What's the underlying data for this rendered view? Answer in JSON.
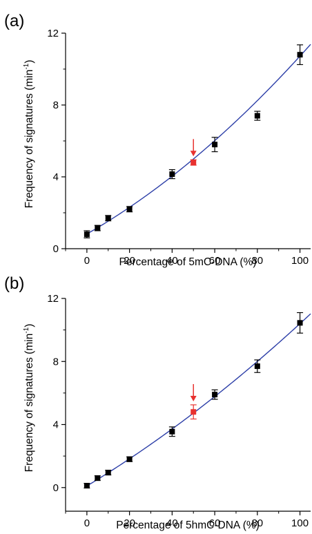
{
  "chart_data": [
    {
      "type": "scatter",
      "panel_label": "(a)",
      "xlabel": "Percentage of 5mC-DNA (%)",
      "ylabel_main": "Frequency of signatures (min",
      "ylabel_sup": "-1",
      "ylabel_end": ")",
      "xlim": [
        -10,
        105
      ],
      "ylim": [
        0,
        12
      ],
      "xticks": [
        "0",
        "20",
        "40",
        "60",
        "80",
        "100"
      ],
      "yticks": [
        "0",
        "4",
        "8",
        "12"
      ],
      "grid": false,
      "fit_line": true,
      "fit_color": "#2d3fa8",
      "highlight_color": "#e8312f",
      "point_color": "#000000",
      "points": [
        {
          "x": 0,
          "y": 0.8,
          "err": 0.2
        },
        {
          "x": 5,
          "y": 1.15,
          "err": 0.15
        },
        {
          "x": 10,
          "y": 1.7,
          "err": 0.15
        },
        {
          "x": 20,
          "y": 2.2,
          "err": 0.15
        },
        {
          "x": 40,
          "y": 4.15,
          "err": 0.25
        },
        {
          "x": 50,
          "y": 4.8,
          "err": 0.15,
          "highlight": true
        },
        {
          "x": 60,
          "y": 5.8,
          "err": 0.4
        },
        {
          "x": 80,
          "y": 7.4,
          "err": 0.25
        },
        {
          "x": 100,
          "y": 10.8,
          "err": 0.55
        }
      ],
      "fit": {
        "a": 0.82,
        "b": 0.068,
        "c": 0.00031
      }
    },
    {
      "type": "scatter",
      "panel_label": "(b)",
      "xlabel": "Percentage of 5hmC-DNA (%)",
      "ylabel_main": "Frequency of signatures (min",
      "ylabel_sup": "-1",
      "ylabel_end": ")",
      "xlim": [
        -10,
        105
      ],
      "ylim": [
        -1.5,
        12
      ],
      "xticks": [
        "0",
        "20",
        "40",
        "60",
        "80",
        "100"
      ],
      "yticks": [
        "0",
        "4",
        "8",
        "12"
      ],
      "grid": false,
      "fit_line": true,
      "fit_color": "#2d3fa8",
      "highlight_color": "#e8312f",
      "point_color": "#000000",
      "points": [
        {
          "x": 0,
          "y": 0.12,
          "err": 0.15
        },
        {
          "x": 5,
          "y": 0.6,
          "err": 0.15
        },
        {
          "x": 10,
          "y": 0.95,
          "err": 0.15
        },
        {
          "x": 20,
          "y": 1.8,
          "err": 0.15
        },
        {
          "x": 40,
          "y": 3.55,
          "err": 0.3
        },
        {
          "x": 50,
          "y": 4.8,
          "err": 0.45,
          "highlight": true
        },
        {
          "x": 60,
          "y": 5.9,
          "err": 0.3
        },
        {
          "x": 80,
          "y": 7.7,
          "err": 0.4
        },
        {
          "x": 100,
          "y": 10.45,
          "err": 0.65
        }
      ],
      "fit": {
        "a": 0.1,
        "b": 0.082,
        "c": 0.00021
      }
    }
  ]
}
